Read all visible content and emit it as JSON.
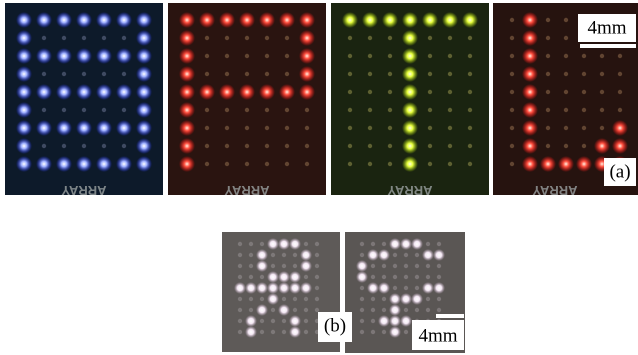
{
  "panel_a": {
    "board_labels": [
      "ARRAY",
      "ARRAY",
      "ARRAY",
      "ARRAY"
    ],
    "scale_label": "4mm",
    "label": "(a)"
  },
  "panel_b": {
    "label": "(b)",
    "scale_label": "4mm"
  }
}
